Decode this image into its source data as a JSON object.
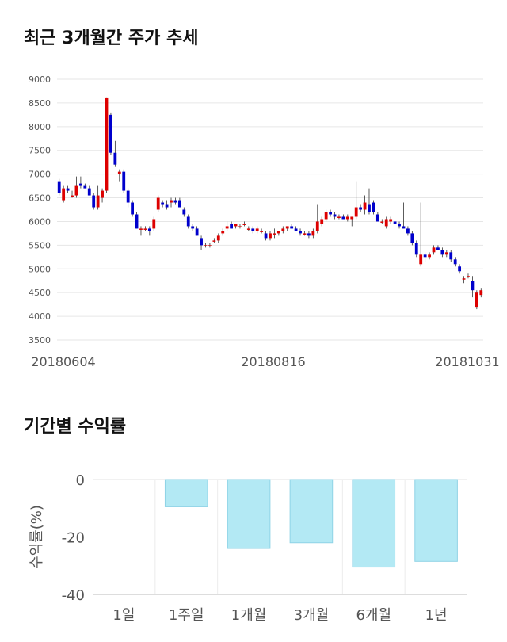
{
  "sections": {
    "price_title": "최근 3개월간 주가 추세",
    "returns_title": "기간별 수익률"
  },
  "chart_data": [
    {
      "type": "candlestick",
      "title": "최근 3개월간 주가 추세",
      "ylim": [
        3500,
        9000
      ],
      "y_ticks": [
        9000,
        8500,
        8000,
        7500,
        7000,
        6500,
        6000,
        5500,
        5000,
        4500,
        4000,
        3500
      ],
      "x_tick_labels": [
        "20180604",
        "20180816",
        "20181031"
      ],
      "grid": true,
      "colors": {
        "up": "#dd0000",
        "down": "#0000cc",
        "wick": "#333333"
      },
      "candles": [
        {
          "o": 6850,
          "h": 6900,
          "l": 6550,
          "c": 6600
        },
        {
          "o": 6450,
          "h": 6750,
          "l": 6400,
          "c": 6700
        },
        {
          "o": 6700,
          "h": 6750,
          "l": 6600,
          "c": 6650
        },
        {
          "o": 6550,
          "h": 6650,
          "l": 6500,
          "c": 6550
        },
        {
          "o": 6550,
          "h": 6950,
          "l": 6500,
          "c": 6750
        },
        {
          "o": 6800,
          "h": 6950,
          "l": 6700,
          "c": 6750
        },
        {
          "o": 6750,
          "h": 6800,
          "l": 6700,
          "c": 6700
        },
        {
          "o": 6700,
          "h": 6750,
          "l": 6550,
          "c": 6550
        },
        {
          "o": 6550,
          "h": 6600,
          "l": 6250,
          "c": 6300
        },
        {
          "o": 6300,
          "h": 6750,
          "l": 6250,
          "c": 6550
        },
        {
          "o": 6500,
          "h": 6700,
          "l": 6400,
          "c": 6650
        },
        {
          "o": 6650,
          "h": 8600,
          "l": 6600,
          "c": 8600
        },
        {
          "o": 8250,
          "h": 8300,
          "l": 7400,
          "c": 7450
        },
        {
          "o": 7450,
          "h": 7700,
          "l": 7150,
          "c": 7200
        },
        {
          "o": 7000,
          "h": 7100,
          "l": 6850,
          "c": 7050
        },
        {
          "o": 7050,
          "h": 7100,
          "l": 6600,
          "c": 6650
        },
        {
          "o": 6650,
          "h": 6700,
          "l": 6300,
          "c": 6400
        },
        {
          "o": 6400,
          "h": 6450,
          "l": 6100,
          "c": 6150
        },
        {
          "o": 6150,
          "h": 6200,
          "l": 5850,
          "c": 5850
        },
        {
          "o": 5850,
          "h": 5900,
          "l": 5700,
          "c": 5850
        },
        {
          "o": 5850,
          "h": 5900,
          "l": 5800,
          "c": 5850
        },
        {
          "o": 5850,
          "h": 5900,
          "l": 5700,
          "c": 5800
        },
        {
          "o": 5850,
          "h": 6100,
          "l": 5800,
          "c": 6050
        },
        {
          "o": 6250,
          "h": 6550,
          "l": 6200,
          "c": 6500
        },
        {
          "o": 6400,
          "h": 6450,
          "l": 6300,
          "c": 6350
        },
        {
          "o": 6350,
          "h": 6450,
          "l": 6250,
          "c": 6300
        },
        {
          "o": 6400,
          "h": 6500,
          "l": 6300,
          "c": 6450
        },
        {
          "o": 6450,
          "h": 6500,
          "l": 6350,
          "c": 6400
        },
        {
          "o": 6450,
          "h": 6500,
          "l": 6350,
          "c": 6300
        },
        {
          "o": 6250,
          "h": 6300,
          "l": 6100,
          "c": 6150
        },
        {
          "o": 6100,
          "h": 6150,
          "l": 5850,
          "c": 5900
        },
        {
          "o": 5900,
          "h": 5950,
          "l": 5800,
          "c": 5850
        },
        {
          "o": 5850,
          "h": 5900,
          "l": 5700,
          "c": 5700
        },
        {
          "o": 5650,
          "h": 5700,
          "l": 5400,
          "c": 5500
        },
        {
          "o": 5500,
          "h": 5550,
          "l": 5450,
          "c": 5500
        },
        {
          "o": 5500,
          "h": 5550,
          "l": 5450,
          "c": 5500
        },
        {
          "o": 5600,
          "h": 5650,
          "l": 5550,
          "c": 5600
        },
        {
          "o": 5600,
          "h": 5750,
          "l": 5550,
          "c": 5700
        },
        {
          "o": 5750,
          "h": 5850,
          "l": 5700,
          "c": 5800
        },
        {
          "o": 5850,
          "h": 6000,
          "l": 5800,
          "c": 5900
        },
        {
          "o": 5950,
          "h": 6000,
          "l": 5850,
          "c": 5850
        },
        {
          "o": 5900,
          "h": 5950,
          "l": 5850,
          "c": 5950
        },
        {
          "o": 5900,
          "h": 5950,
          "l": 5850,
          "c": 5900
        },
        {
          "o": 5950,
          "h": 6000,
          "l": 5900,
          "c": 5950
        },
        {
          "o": 5850,
          "h": 5900,
          "l": 5800,
          "c": 5850
        },
        {
          "o": 5850,
          "h": 5900,
          "l": 5750,
          "c": 5800
        },
        {
          "o": 5800,
          "h": 5900,
          "l": 5750,
          "c": 5850
        },
        {
          "o": 5800,
          "h": 5850,
          "l": 5750,
          "c": 5800
        },
        {
          "o": 5750,
          "h": 5800,
          "l": 5600,
          "c": 5650
        },
        {
          "o": 5650,
          "h": 5800,
          "l": 5600,
          "c": 5750
        },
        {
          "o": 5750,
          "h": 5850,
          "l": 5650,
          "c": 5750
        },
        {
          "o": 5750,
          "h": 5800,
          "l": 5700,
          "c": 5800
        },
        {
          "o": 5800,
          "h": 5900,
          "l": 5750,
          "c": 5850
        },
        {
          "o": 5850,
          "h": 5900,
          "l": 5800,
          "c": 5900
        },
        {
          "o": 5900,
          "h": 5950,
          "l": 5850,
          "c": 5850
        },
        {
          "o": 5850,
          "h": 5900,
          "l": 5800,
          "c": 5800
        },
        {
          "o": 5800,
          "h": 5850,
          "l": 5700,
          "c": 5750
        },
        {
          "o": 5750,
          "h": 5800,
          "l": 5700,
          "c": 5750
        },
        {
          "o": 5750,
          "h": 5800,
          "l": 5650,
          "c": 5700
        },
        {
          "o": 5700,
          "h": 5850,
          "l": 5650,
          "c": 5800
        },
        {
          "o": 5800,
          "h": 6350,
          "l": 5750,
          "c": 6000
        },
        {
          "o": 5950,
          "h": 6100,
          "l": 5900,
          "c": 6050
        },
        {
          "o": 6050,
          "h": 6250,
          "l": 6000,
          "c": 6200
        },
        {
          "o": 6200,
          "h": 6250,
          "l": 6100,
          "c": 6150
        },
        {
          "o": 6150,
          "h": 6200,
          "l": 6050,
          "c": 6100
        },
        {
          "o": 6100,
          "h": 6150,
          "l": 6050,
          "c": 6100
        },
        {
          "o": 6100,
          "h": 6150,
          "l": 6050,
          "c": 6050
        },
        {
          "o": 6050,
          "h": 6150,
          "l": 6000,
          "c": 6100
        },
        {
          "o": 6050,
          "h": 6100,
          "l": 5900,
          "c": 6100
        },
        {
          "o": 6100,
          "h": 6850,
          "l": 6050,
          "c": 6300
        },
        {
          "o": 6300,
          "h": 6350,
          "l": 6200,
          "c": 6250
        },
        {
          "o": 6250,
          "h": 6550,
          "l": 6150,
          "c": 6400
        },
        {
          "o": 6350,
          "h": 6700,
          "l": 6150,
          "c": 6200
        },
        {
          "o": 6400,
          "h": 6450,
          "l": 6150,
          "c": 6200
        },
        {
          "o": 6150,
          "h": 6200,
          "l": 6000,
          "c": 6000
        },
        {
          "o": 6000,
          "h": 6050,
          "l": 5950,
          "c": 6000
        },
        {
          "o": 5900,
          "h": 6100,
          "l": 5850,
          "c": 6050
        },
        {
          "o": 6000,
          "h": 6100,
          "l": 5950,
          "c": 6050
        },
        {
          "o": 6000,
          "h": 6050,
          "l": 5900,
          "c": 5950
        },
        {
          "o": 5950,
          "h": 6000,
          "l": 5850,
          "c": 5900
        },
        {
          "o": 5900,
          "h": 6400,
          "l": 5850,
          "c": 5850
        },
        {
          "o": 5850,
          "h": 5900,
          "l": 5700,
          "c": 5750
        },
        {
          "o": 5750,
          "h": 5800,
          "l": 5500,
          "c": 5550
        },
        {
          "o": 5550,
          "h": 5600,
          "l": 5250,
          "c": 5300
        },
        {
          "o": 5100,
          "h": 6400,
          "l": 5050,
          "c": 5300
        },
        {
          "o": 5300,
          "h": 5350,
          "l": 5150,
          "c": 5250
        },
        {
          "o": 5250,
          "h": 5350,
          "l": 5200,
          "c": 5300
        },
        {
          "o": 5350,
          "h": 5500,
          "l": 5300,
          "c": 5450
        },
        {
          "o": 5450,
          "h": 5500,
          "l": 5400,
          "c": 5400
        },
        {
          "o": 5400,
          "h": 5450,
          "l": 5250,
          "c": 5300
        },
        {
          "o": 5300,
          "h": 5400,
          "l": 5250,
          "c": 5350
        },
        {
          "o": 5350,
          "h": 5400,
          "l": 5150,
          "c": 5200
        },
        {
          "o": 5200,
          "h": 5250,
          "l": 5050,
          "c": 5100
        },
        {
          "o": 5050,
          "h": 5100,
          "l": 4900,
          "c": 4950
        },
        {
          "o": 4800,
          "h": 4850,
          "l": 4700,
          "c": 4800
        },
        {
          "o": 4850,
          "h": 4900,
          "l": 4800,
          "c": 4850
        },
        {
          "o": 4750,
          "h": 4850,
          "l": 4400,
          "c": 4550
        },
        {
          "o": 4200,
          "h": 4550,
          "l": 4150,
          "c": 4500
        },
        {
          "o": 4450,
          "h": 4600,
          "l": 4400,
          "c": 4550
        }
      ]
    },
    {
      "type": "bar",
      "title": "기간별 수익률",
      "ylabel": "수익률(%)",
      "ylim": [
        -40,
        0
      ],
      "y_ticks": [
        0,
        -20,
        -40
      ],
      "categories": [
        "1일",
        "1주일",
        "1개월",
        "3개월",
        "6개월",
        "1년"
      ],
      "values": [
        0,
        -9.5,
        -24,
        -22,
        -30.5,
        -28.5
      ],
      "grid": true,
      "colors": {
        "bar_fill": "#b3e9f4",
        "bar_stroke": "#8fd3e6"
      }
    }
  ]
}
